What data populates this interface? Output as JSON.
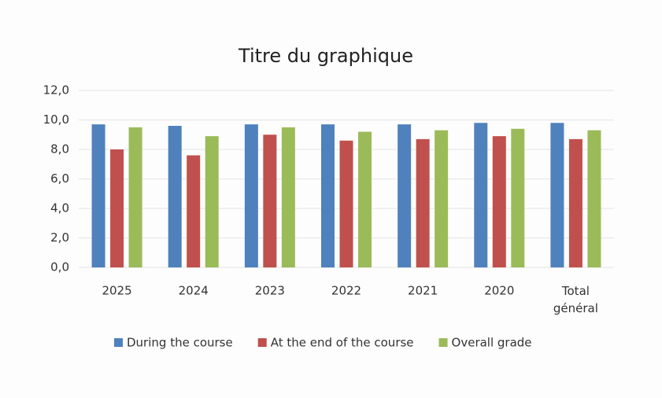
{
  "chart_data": {
    "type": "bar",
    "title": "Titre du graphique",
    "categories": [
      "2025",
      "2024",
      "2023",
      "2022",
      "2021",
      "2020",
      "Total général"
    ],
    "series": [
      {
        "name": "During the course",
        "color": "#4f81bd",
        "values": [
          9.7,
          9.6,
          9.7,
          9.7,
          9.7,
          9.8,
          9.8
        ]
      },
      {
        "name": "At the end of the course",
        "color": "#c0504d",
        "values": [
          8.0,
          7.6,
          9.0,
          8.6,
          8.7,
          8.9,
          8.7
        ]
      },
      {
        "name": "Overall grade",
        "color": "#9bbb59",
        "values": [
          9.5,
          8.9,
          9.5,
          9.2,
          9.3,
          9.4,
          9.3
        ]
      }
    ],
    "ylim": [
      0,
      12
    ],
    "yticks": [
      {
        "value": 0,
        "label": "0,0"
      },
      {
        "value": 2,
        "label": "2,0"
      },
      {
        "value": 4,
        "label": "4,0"
      },
      {
        "value": 6,
        "label": "6,0"
      },
      {
        "value": 8,
        "label": "8,0"
      },
      {
        "value": 10,
        "label": "10,0"
      },
      {
        "value": 12,
        "label": "12,0"
      }
    ],
    "grid": true,
    "legend": "bottom"
  }
}
